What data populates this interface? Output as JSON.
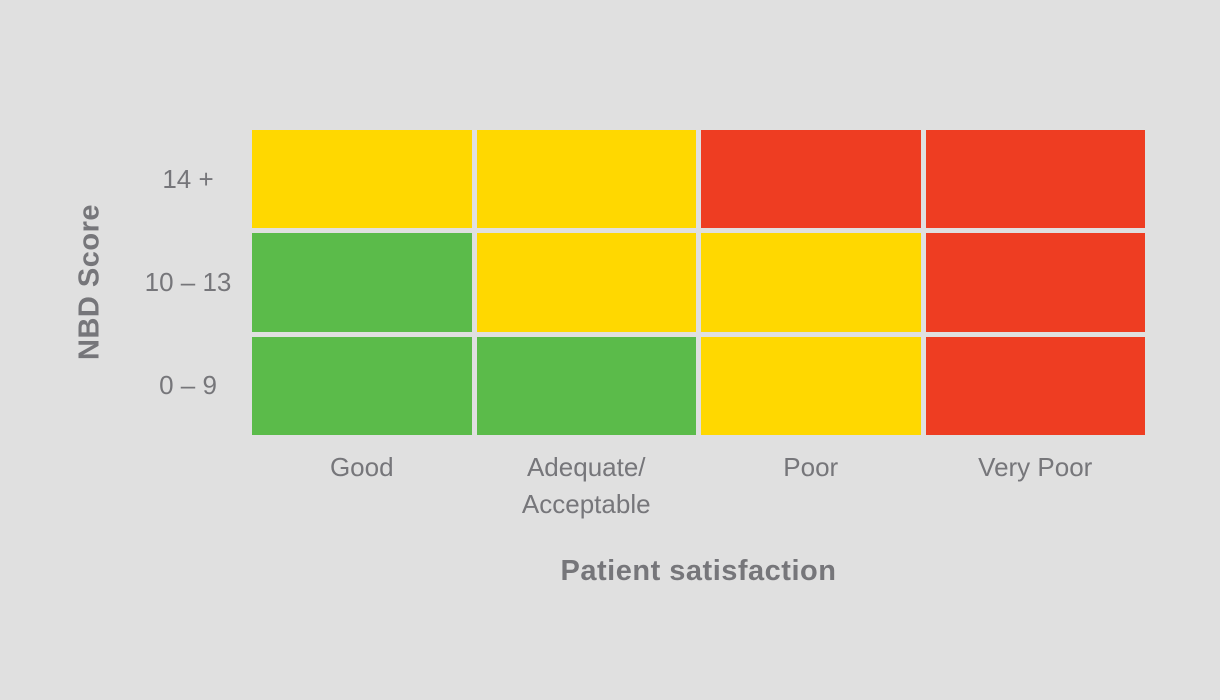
{
  "chart_data": {
    "type": "heatmap",
    "xlabel": "Patient satisfaction",
    "ylabel": "NBD Score",
    "x_categories": [
      "Good",
      "Adequate/\nAcceptable",
      "Poor",
      "Very Poor"
    ],
    "y_categories": [
      "14 +",
      "10 – 13",
      "0 – 9"
    ],
    "cells": [
      [
        "yellow",
        "yellow",
        "red",
        "red"
      ],
      [
        "green",
        "yellow",
        "yellow",
        "red"
      ],
      [
        "green",
        "green",
        "yellow",
        "red"
      ]
    ],
    "cell_colors": {
      "green": "#5bbb4a",
      "yellow": "#ffd800",
      "red": "#ee3d22"
    },
    "background_color": "#e0e0e0",
    "text_color": "#76767a",
    "legend": "none",
    "grid_lines": "gaps between cells show background",
    "layout": {
      "columns": 4,
      "rows": 3
    }
  }
}
